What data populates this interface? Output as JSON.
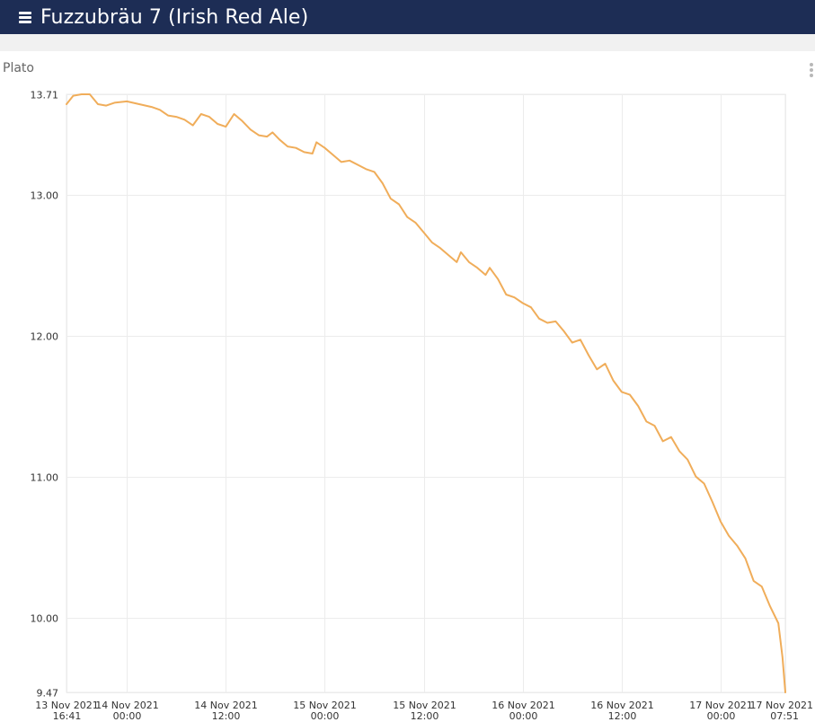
{
  "header": {
    "title": "Fuzzubräu 7 (Irish Red Ale)",
    "menu_icon": "hamburger-menu-icon",
    "menu_label": "Menu",
    "background": "#1d2d55"
  },
  "chart_panel": {
    "title": "Plato",
    "menu_icon": "kebab-menu-icon"
  },
  "chart_data": {
    "type": "line",
    "title": "Plato",
    "xlabel": "",
    "ylabel": "",
    "x_range": [
      "2021-11-13 16:41",
      "2021-11-17 07:51"
    ],
    "ylim": [
      9.47,
      13.71
    ],
    "grid": true,
    "line_color": "#f0ad5a",
    "x_ticks": [
      {
        "value": "2021-11-13 16:41",
        "line1": "13 Nov 2021",
        "line2": "16:41"
      },
      {
        "value": "2021-11-14 00:00",
        "line1": "14 Nov 2021",
        "line2": "00:00"
      },
      {
        "value": "2021-11-14 12:00",
        "line1": "14 Nov 2021",
        "line2": "12:00"
      },
      {
        "value": "2021-11-15 00:00",
        "line1": "15 Nov 2021",
        "line2": "00:00"
      },
      {
        "value": "2021-11-15 12:00",
        "line1": "15 Nov 2021",
        "line2": "12:00"
      },
      {
        "value": "2021-11-16 00:00",
        "line1": "16 Nov 2021",
        "line2": "00:00"
      },
      {
        "value": "2021-11-16 12:00",
        "line1": "16 Nov 2021",
        "line2": "12:00"
      },
      {
        "value": "2021-11-17 00:00",
        "line1": "17 Nov 2021",
        "line2": "00:00"
      },
      {
        "value": "2021-11-17 07:51",
        "line1": "17 Nov 2021",
        "line2": "07:51"
      }
    ],
    "y_ticks": [
      {
        "value": 13.71,
        "label": "13.71"
      },
      {
        "value": 13.0,
        "label": "13.00"
      },
      {
        "value": 12.0,
        "label": "12.00"
      },
      {
        "value": 11.0,
        "label": "11.00"
      },
      {
        "value": 10.0,
        "label": "10.00"
      },
      {
        "value": 9.47,
        "label": "9.47"
      }
    ],
    "series": [
      {
        "points": [
          [
            "2021-11-13 16:41",
            13.64
          ],
          [
            "2021-11-13 17:30",
            13.7
          ],
          [
            "2021-11-13 18:30",
            13.71
          ],
          [
            "2021-11-13 19:30",
            13.71
          ],
          [
            "2021-11-13 20:30",
            13.64
          ],
          [
            "2021-11-13 21:30",
            13.63
          ],
          [
            "2021-11-13 22:30",
            13.65
          ],
          [
            "2021-11-14 00:00",
            13.66
          ],
          [
            "2021-11-14 01:30",
            13.64
          ],
          [
            "2021-11-14 03:00",
            13.62
          ],
          [
            "2021-11-14 04:00",
            13.6
          ],
          [
            "2021-11-14 05:00",
            13.56
          ],
          [
            "2021-11-14 06:00",
            13.55
          ],
          [
            "2021-11-14 07:00",
            13.53
          ],
          [
            "2021-11-14 08:00",
            13.49
          ],
          [
            "2021-11-14 09:00",
            13.57
          ],
          [
            "2021-11-14 10:00",
            13.55
          ],
          [
            "2021-11-14 11:00",
            13.5
          ],
          [
            "2021-11-14 12:00",
            13.48
          ],
          [
            "2021-11-14 13:00",
            13.57
          ],
          [
            "2021-11-14 14:00",
            13.52
          ],
          [
            "2021-11-14 15:00",
            13.46
          ],
          [
            "2021-11-14 16:00",
            13.42
          ],
          [
            "2021-11-14 17:00",
            13.41
          ],
          [
            "2021-11-14 17:40",
            13.44
          ],
          [
            "2021-11-14 18:30",
            13.39
          ],
          [
            "2021-11-14 19:30",
            13.34
          ],
          [
            "2021-11-14 20:30",
            13.33
          ],
          [
            "2021-11-14 21:30",
            13.3
          ],
          [
            "2021-11-14 22:30",
            13.29
          ],
          [
            "2021-11-14 23:00",
            13.37
          ],
          [
            "2021-11-15 00:00",
            13.33
          ],
          [
            "2021-11-15 01:00",
            13.28
          ],
          [
            "2021-11-15 02:00",
            13.23
          ],
          [
            "2021-11-15 03:00",
            13.24
          ],
          [
            "2021-11-15 04:00",
            13.21
          ],
          [
            "2021-11-15 05:00",
            13.18
          ],
          [
            "2021-11-15 06:00",
            13.16
          ],
          [
            "2021-11-15 07:00",
            13.08
          ],
          [
            "2021-11-15 08:00",
            12.97
          ],
          [
            "2021-11-15 09:00",
            12.93
          ],
          [
            "2021-11-15 10:00",
            12.84
          ],
          [
            "2021-11-15 11:00",
            12.8
          ],
          [
            "2021-11-15 12:00",
            12.73
          ],
          [
            "2021-11-15 13:00",
            12.66
          ],
          [
            "2021-11-15 14:00",
            12.62
          ],
          [
            "2021-11-15 15:00",
            12.57
          ],
          [
            "2021-11-15 16:00",
            12.52
          ],
          [
            "2021-11-15 16:30",
            12.59
          ],
          [
            "2021-11-15 17:30",
            12.52
          ],
          [
            "2021-11-15 18:30",
            12.48
          ],
          [
            "2021-11-15 19:30",
            12.43
          ],
          [
            "2021-11-15 20:00",
            12.48
          ],
          [
            "2021-11-15 21:00",
            12.4
          ],
          [
            "2021-11-15 22:00",
            12.29
          ],
          [
            "2021-11-15 23:00",
            12.27
          ],
          [
            "2021-11-16 00:00",
            12.23
          ],
          [
            "2021-11-16 01:00",
            12.2
          ],
          [
            "2021-11-16 02:00",
            12.12
          ],
          [
            "2021-11-16 03:00",
            12.09
          ],
          [
            "2021-11-16 04:00",
            12.1
          ],
          [
            "2021-11-16 05:00",
            12.03
          ],
          [
            "2021-11-16 06:00",
            11.95
          ],
          [
            "2021-11-16 07:00",
            11.97
          ],
          [
            "2021-11-16 08:00",
            11.86
          ],
          [
            "2021-11-16 09:00",
            11.76
          ],
          [
            "2021-11-16 10:00",
            11.8
          ],
          [
            "2021-11-16 11:00",
            11.68
          ],
          [
            "2021-11-16 12:00",
            11.6
          ],
          [
            "2021-11-16 13:00",
            11.58
          ],
          [
            "2021-11-16 14:00",
            11.5
          ],
          [
            "2021-11-16 15:00",
            11.39
          ],
          [
            "2021-11-16 16:00",
            11.36
          ],
          [
            "2021-11-16 17:00",
            11.25
          ],
          [
            "2021-11-16 18:00",
            11.28
          ],
          [
            "2021-11-16 19:00",
            11.18
          ],
          [
            "2021-11-16 20:00",
            11.12
          ],
          [
            "2021-11-16 21:00",
            11.0
          ],
          [
            "2021-11-16 22:00",
            10.95
          ],
          [
            "2021-11-16 23:00",
            10.82
          ],
          [
            "2021-11-17 00:00",
            10.68
          ],
          [
            "2021-11-17 01:00",
            10.58
          ],
          [
            "2021-11-17 02:00",
            10.51
          ],
          [
            "2021-11-17 03:00",
            10.42
          ],
          [
            "2021-11-17 04:00",
            10.26
          ],
          [
            "2021-11-17 05:00",
            10.22
          ],
          [
            "2021-11-17 06:00",
            10.08
          ],
          [
            "2021-11-17 07:00",
            9.96
          ],
          [
            "2021-11-17 07:30",
            9.72
          ],
          [
            "2021-11-17 07:51",
            9.47
          ]
        ]
      }
    ]
  }
}
